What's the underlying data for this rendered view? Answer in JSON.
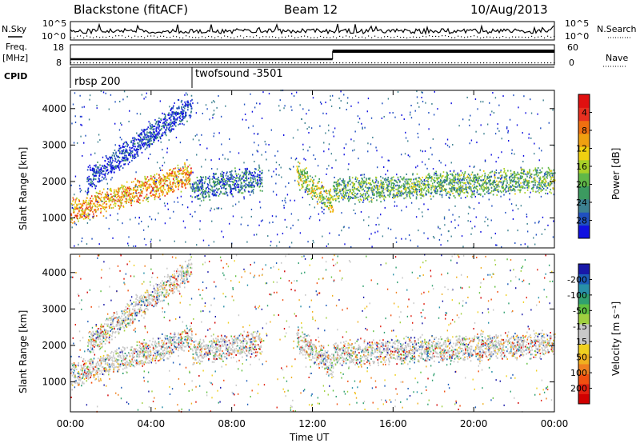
{
  "header": {
    "station": "Blackstone (fitACF)",
    "beam": "Beam 12",
    "date": "10/Aug/2013"
  },
  "left_labels": {
    "nsky": "N.Sky",
    "freq_top": "Freq.",
    "freq_unit": "[MHz]",
    "cpid": "CPID"
  },
  "right_labels": {
    "nsearch": "N.Search",
    "nave": "Nave"
  },
  "cpid_labels": [
    "rbsp 200",
    "twofsound -3501"
  ],
  "colorbar_power": {
    "label": "Power [dB]",
    "ticks": [
      "4",
      "8",
      "12",
      "16",
      "20",
      "24",
      "28"
    ],
    "colors": [
      "#1010e0",
      "#2050c0",
      "#3c8090",
      "#3c9a60",
      "#60b848",
      "#a8d028",
      "#f0d010",
      "#f0a010",
      "#f07010",
      "#e83020",
      "#e01010"
    ]
  },
  "colorbar_velocity": {
    "label": "Velocity [m s⁻¹]",
    "ticks": [
      "200",
      "100",
      "50",
      "15",
      "-15",
      "-50",
      "-100",
      "-200"
    ],
    "colors": [
      "#1818a8",
      "#1c5cb8",
      "#2890a8",
      "#30a070",
      "#60c040",
      "#a0d040",
      "#c8c8c8",
      "#c8c8c8",
      "#f0d020",
      "#f0b020",
      "#f08020",
      "#f05010",
      "#e02010",
      "#d00000"
    ]
  },
  "chart_data": {
    "type": "heatmap",
    "xlabel": "Time UT",
    "x_ticks": [
      "00:00",
      "04:00",
      "08:00",
      "12:00",
      "16:00",
      "20:00",
      "00:00"
    ],
    "x_range_hours": [
      0,
      24
    ],
    "ylabel": "Slant Range [km]",
    "y_ticks": [
      1000,
      2000,
      3000,
      4000
    ],
    "y_range_km": [
      180,
      4500
    ],
    "top_panel": {
      "nsky_ticks": [
        "10^5",
        "10^0"
      ],
      "nsearch_ticks": [
        "10^5",
        "10^0"
      ],
      "freq_ticks": [
        18,
        8
      ],
      "nave_ticks": [
        60,
        0
      ],
      "cpid_change_hour": 6.0,
      "freq_change_hour": 13.0
    },
    "panels": [
      {
        "name": "power",
        "echo_bands": [
          {
            "t0": 0.0,
            "t1": 6.0,
            "r0": 1150,
            "r1": 2200,
            "level": 0.95
          },
          {
            "t0": 0.8,
            "t1": 6.0,
            "r0": 2000,
            "r1": 4100,
            "level": 0.3
          },
          {
            "t0": 6.0,
            "t1": 9.5,
            "r0": 1800,
            "r1": 2100,
            "level": 0.45
          },
          {
            "t0": 11.2,
            "t1": 13.0,
            "r0": 2200,
            "r1": 1400,
            "level": 0.75
          },
          {
            "t0": 13.0,
            "t1": 24.0,
            "r0": 1750,
            "r1": 2050,
            "level": 0.6
          }
        ]
      },
      {
        "name": "velocity",
        "echo_bands": [
          {
            "t0": 0.0,
            "t1": 6.0,
            "r0": 1150,
            "r1": 2200,
            "level": 0.5
          },
          {
            "t0": 0.8,
            "t1": 6.0,
            "r0": 2000,
            "r1": 4100,
            "level": 0.5
          },
          {
            "t0": 6.0,
            "t1": 9.5,
            "r0": 1800,
            "r1": 2100,
            "level": 0.5
          },
          {
            "t0": 11.2,
            "t1": 13.0,
            "r0": 2200,
            "r1": 1400,
            "level": 0.5
          },
          {
            "t0": 13.0,
            "t1": 24.0,
            "r0": 1750,
            "r1": 2050,
            "level": 0.5
          }
        ]
      }
    ]
  }
}
